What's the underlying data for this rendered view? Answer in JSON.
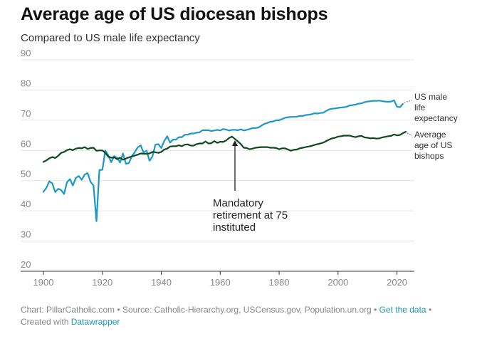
{
  "header": {
    "title": "Average age of US diocesan bishops",
    "subtitle": "Compared to US male life expectancy"
  },
  "footer": {
    "chart_credit": "Chart: PillarCatholic.com",
    "source": "Source: Catholic-Hierarchy.org, USCensus.gov, Population.un.org",
    "get_data_link": "Get the data",
    "created_with": "Created with",
    "datawrapper_link": "Datawrapper",
    "separator": "•"
  },
  "colors": {
    "life_expectancy": "#1d97c6",
    "bishops": "#0c4a1c",
    "grid": "#e6e6e6",
    "link": "#1d97b8"
  },
  "chart_data": {
    "type": "line",
    "title": "Average age of US diocesan bishops",
    "subtitle": "Compared to US male life expectancy",
    "xlabel": "",
    "ylabel": "",
    "xlim": [
      1900,
      2023
    ],
    "ylim": [
      20,
      90
    ],
    "x_ticks": [
      1900,
      1920,
      1940,
      1960,
      1980,
      2000,
      2020
    ],
    "y_ticks": [
      20,
      30,
      40,
      50,
      60,
      70,
      80,
      90
    ],
    "grid": true,
    "legend": "direct labels at right",
    "series": [
      {
        "name": "US male life expectancy",
        "label_lines": [
          "US male",
          "life",
          "expectancy"
        ],
        "color": "#1d97c6",
        "points": [
          [
            1900,
            46.3
          ],
          [
            1901,
            47.6
          ],
          [
            1902,
            49.8
          ],
          [
            1903,
            49.1
          ],
          [
            1904,
            46.2
          ],
          [
            1905,
            47.3
          ],
          [
            1906,
            46.9
          ],
          [
            1907,
            45.6
          ],
          [
            1908,
            49.5
          ],
          [
            1909,
            50.5
          ],
          [
            1910,
            48.4
          ],
          [
            1911,
            50.9
          ],
          [
            1912,
            51.5
          ],
          [
            1913,
            50.3
          ],
          [
            1914,
            52.0
          ],
          [
            1915,
            52.5
          ],
          [
            1916,
            49.6
          ],
          [
            1917,
            48.4
          ],
          [
            1918,
            36.6
          ],
          [
            1919,
            53.5
          ],
          [
            1920,
            53.6
          ],
          [
            1921,
            60.0
          ],
          [
            1922,
            58.4
          ],
          [
            1923,
            56.1
          ],
          [
            1924,
            58.1
          ],
          [
            1925,
            57.6
          ],
          [
            1926,
            56.0
          ],
          [
            1927,
            59.0
          ],
          [
            1928,
            55.6
          ],
          [
            1929,
            55.8
          ],
          [
            1930,
            58.1
          ],
          [
            1931,
            59.4
          ],
          [
            1932,
            61.0
          ],
          [
            1933,
            61.7
          ],
          [
            1934,
            59.3
          ],
          [
            1935,
            59.9
          ],
          [
            1936,
            56.6
          ],
          [
            1937,
            58.0
          ],
          [
            1938,
            61.9
          ],
          [
            1939,
            62.1
          ],
          [
            1940,
            60.8
          ],
          [
            1941,
            63.1
          ],
          [
            1942,
            64.7
          ],
          [
            1943,
            62.6
          ],
          [
            1944,
            63.6
          ],
          [
            1945,
            63.6
          ],
          [
            1946,
            64.4
          ],
          [
            1947,
            64.4
          ],
          [
            1948,
            65.2
          ],
          [
            1949,
            65.2
          ],
          [
            1950,
            65.6
          ],
          [
            1951,
            65.6
          ],
          [
            1952,
            65.9
          ],
          [
            1953,
            66.0
          ],
          [
            1954,
            66.7
          ],
          [
            1955,
            66.7
          ],
          [
            1956,
            66.7
          ],
          [
            1957,
            66.4
          ],
          [
            1958,
            66.6
          ],
          [
            1959,
            66.8
          ],
          [
            1960,
            66.6
          ],
          [
            1961,
            67.1
          ],
          [
            1962,
            66.9
          ],
          [
            1963,
            66.6
          ],
          [
            1964,
            66.8
          ],
          [
            1965,
            66.8
          ],
          [
            1966,
            66.7
          ],
          [
            1967,
            67.0
          ],
          [
            1968,
            66.6
          ],
          [
            1969,
            66.8
          ],
          [
            1970,
            67.1
          ],
          [
            1971,
            67.4
          ],
          [
            1972,
            67.4
          ],
          [
            1973,
            67.6
          ],
          [
            1974,
            68.2
          ],
          [
            1975,
            68.8
          ],
          [
            1976,
            69.1
          ],
          [
            1977,
            69.5
          ],
          [
            1978,
            69.6
          ],
          [
            1979,
            70.0
          ],
          [
            1980,
            70.0
          ],
          [
            1981,
            70.4
          ],
          [
            1982,
            70.8
          ],
          [
            1983,
            71.0
          ],
          [
            1984,
            71.1
          ],
          [
            1985,
            71.1
          ],
          [
            1986,
            71.2
          ],
          [
            1987,
            71.4
          ],
          [
            1988,
            71.4
          ],
          [
            1989,
            71.7
          ],
          [
            1990,
            71.8
          ],
          [
            1991,
            72.0
          ],
          [
            1992,
            72.3
          ],
          [
            1993,
            72.2
          ],
          [
            1994,
            72.4
          ],
          [
            1995,
            72.5
          ],
          [
            1996,
            73.1
          ],
          [
            1997,
            73.6
          ],
          [
            1998,
            73.8
          ],
          [
            1999,
            73.9
          ],
          [
            2000,
            74.1
          ],
          [
            2001,
            74.2
          ],
          [
            2002,
            74.3
          ],
          [
            2003,
            74.5
          ],
          [
            2004,
            74.9
          ],
          [
            2005,
            75.0
          ],
          [
            2006,
            75.2
          ],
          [
            2007,
            75.5
          ],
          [
            2008,
            75.6
          ],
          [
            2009,
            76.0
          ],
          [
            2010,
            76.2
          ],
          [
            2011,
            76.3
          ],
          [
            2012,
            76.4
          ],
          [
            2013,
            76.4
          ],
          [
            2014,
            76.5
          ],
          [
            2015,
            76.3
          ],
          [
            2016,
            76.2
          ],
          [
            2017,
            76.1
          ],
          [
            2018,
            76.2
          ],
          [
            2019,
            76.6
          ],
          [
            2020,
            74.5
          ],
          [
            2021,
            74.3
          ],
          [
            2022,
            75.4
          ]
        ]
      },
      {
        "name": "Average age of US bishops",
        "label_lines": [
          "Average",
          "age of US",
          "bishops"
        ],
        "color": "#0c4a1c",
        "points": [
          [
            1900,
            56.2
          ],
          [
            1901,
            56.7
          ],
          [
            1902,
            57.4
          ],
          [
            1903,
            57.8
          ],
          [
            1904,
            57.5
          ],
          [
            1905,
            58.2
          ],
          [
            1906,
            59.2
          ],
          [
            1907,
            59.5
          ],
          [
            1908,
            60.1
          ],
          [
            1909,
            60.4
          ],
          [
            1910,
            60.1
          ],
          [
            1911,
            60.6
          ],
          [
            1912,
            60.8
          ],
          [
            1913,
            60.7
          ],
          [
            1914,
            61.1
          ],
          [
            1915,
            60.5
          ],
          [
            1916,
            60.8
          ],
          [
            1917,
            60.9
          ],
          [
            1918,
            59.9
          ],
          [
            1919,
            60.0
          ],
          [
            1920,
            60.0
          ],
          [
            1921,
            59.2
          ],
          [
            1922,
            58.0
          ],
          [
            1923,
            57.6
          ],
          [
            1924,
            57.7
          ],
          [
            1925,
            57.1
          ],
          [
            1926,
            57.6
          ],
          [
            1927,
            56.9
          ],
          [
            1928,
            57.3
          ],
          [
            1929,
            57.7
          ],
          [
            1930,
            58.0
          ],
          [
            1931,
            58.3
          ],
          [
            1932,
            58.6
          ],
          [
            1933,
            59.0
          ],
          [
            1934,
            58.9
          ],
          [
            1935,
            58.9
          ],
          [
            1936,
            59.0
          ],
          [
            1937,
            59.5
          ],
          [
            1938,
            59.4
          ],
          [
            1939,
            59.2
          ],
          [
            1940,
            59.5
          ],
          [
            1941,
            60.3
          ],
          [
            1942,
            60.6
          ],
          [
            1943,
            61.3
          ],
          [
            1944,
            61.4
          ],
          [
            1945,
            61.4
          ],
          [
            1946,
            61.7
          ],
          [
            1947,
            61.4
          ],
          [
            1948,
            61.9
          ],
          [
            1949,
            62.0
          ],
          [
            1950,
            61.6
          ],
          [
            1951,
            61.6
          ],
          [
            1952,
            62.1
          ],
          [
            1953,
            62.3
          ],
          [
            1954,
            62.3
          ],
          [
            1955,
            63.0
          ],
          [
            1956,
            62.3
          ],
          [
            1957,
            62.4
          ],
          [
            1958,
            63.1
          ],
          [
            1959,
            62.5
          ],
          [
            1960,
            62.9
          ],
          [
            1961,
            62.8
          ],
          [
            1962,
            63.3
          ],
          [
            1963,
            64.1
          ],
          [
            1964,
            64.6
          ],
          [
            1965,
            63.8
          ],
          [
            1966,
            63.0
          ],
          [
            1967,
            62.1
          ],
          [
            1968,
            60.9
          ],
          [
            1969,
            60.8
          ],
          [
            1970,
            60.4
          ],
          [
            1971,
            60.6
          ],
          [
            1972,
            60.9
          ],
          [
            1973,
            61.0
          ],
          [
            1974,
            61.1
          ],
          [
            1975,
            61.1
          ],
          [
            1976,
            61.1
          ],
          [
            1977,
            60.9
          ],
          [
            1978,
            60.9
          ],
          [
            1979,
            60.8
          ],
          [
            1980,
            60.4
          ],
          [
            1981,
            60.7
          ],
          [
            1982,
            60.7
          ],
          [
            1983,
            60.3
          ],
          [
            1984,
            59.9
          ],
          [
            1985,
            60.2
          ],
          [
            1986,
            60.3
          ],
          [
            1987,
            60.7
          ],
          [
            1988,
            60.9
          ],
          [
            1989,
            61.1
          ],
          [
            1990,
            61.3
          ],
          [
            1991,
            61.5
          ],
          [
            1992,
            61.8
          ],
          [
            1993,
            62.1
          ],
          [
            1994,
            62.3
          ],
          [
            1995,
            62.6
          ],
          [
            1996,
            63.1
          ],
          [
            1997,
            63.6
          ],
          [
            1998,
            64.0
          ],
          [
            1999,
            64.2
          ],
          [
            2000,
            64.6
          ],
          [
            2001,
            64.7
          ],
          [
            2002,
            64.9
          ],
          [
            2003,
            64.9
          ],
          [
            2004,
            64.9
          ],
          [
            2005,
            64.6
          ],
          [
            2006,
            64.4
          ],
          [
            2007,
            64.7
          ],
          [
            2008,
            64.8
          ],
          [
            2009,
            64.3
          ],
          [
            2010,
            64.2
          ],
          [
            2011,
            64.0
          ],
          [
            2012,
            64.1
          ],
          [
            2013,
            63.9
          ],
          [
            2014,
            64.0
          ],
          [
            2015,
            64.3
          ],
          [
            2016,
            64.5
          ],
          [
            2017,
            64.7
          ],
          [
            2018,
            64.8
          ],
          [
            2019,
            65.3
          ],
          [
            2020,
            65.0
          ],
          [
            2021,
            65.1
          ],
          [
            2022,
            65.7
          ],
          [
            2023,
            66.2
          ]
        ]
      }
    ],
    "annotations": [
      {
        "text_lines": [
          "Mandatory",
          "retirement at 75",
          "instituted"
        ],
        "x": 1965,
        "y": 64.3
      }
    ]
  }
}
